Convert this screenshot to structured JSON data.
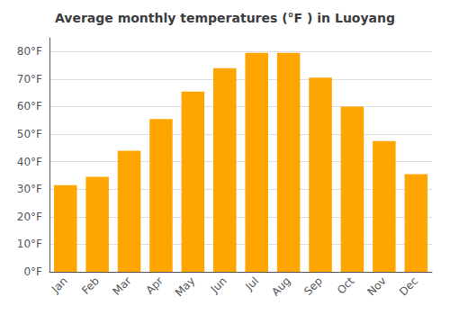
{
  "chart_data": {
    "type": "bar",
    "title": "Average monthly temperatures (°F ) in Luoyang",
    "categories": [
      "Jan",
      "Feb",
      "Mar",
      "Apr",
      "May",
      "Jun",
      "Jul",
      "Aug",
      "Sep",
      "Oct",
      "Nov",
      "Dec"
    ],
    "values": [
      31.5,
      34.5,
      44,
      55.5,
      65.5,
      74,
      79.5,
      79.5,
      70.5,
      60,
      47.5,
      35.5
    ],
    "color": "#FFA500",
    "ylim": [
      0,
      85
    ],
    "yticks": [
      {
        "value": 0,
        "label": "0°F"
      },
      {
        "value": 10,
        "label": "10°F"
      },
      {
        "value": 20,
        "label": "20°F"
      },
      {
        "value": 30,
        "label": "30°F"
      },
      {
        "value": 40,
        "label": "40°F"
      },
      {
        "value": 50,
        "label": "50°F"
      },
      {
        "value": 60,
        "label": "60°F"
      },
      {
        "value": 70,
        "label": "70°F"
      },
      {
        "value": 80,
        "label": "80°F"
      }
    ],
    "grid": true
  }
}
